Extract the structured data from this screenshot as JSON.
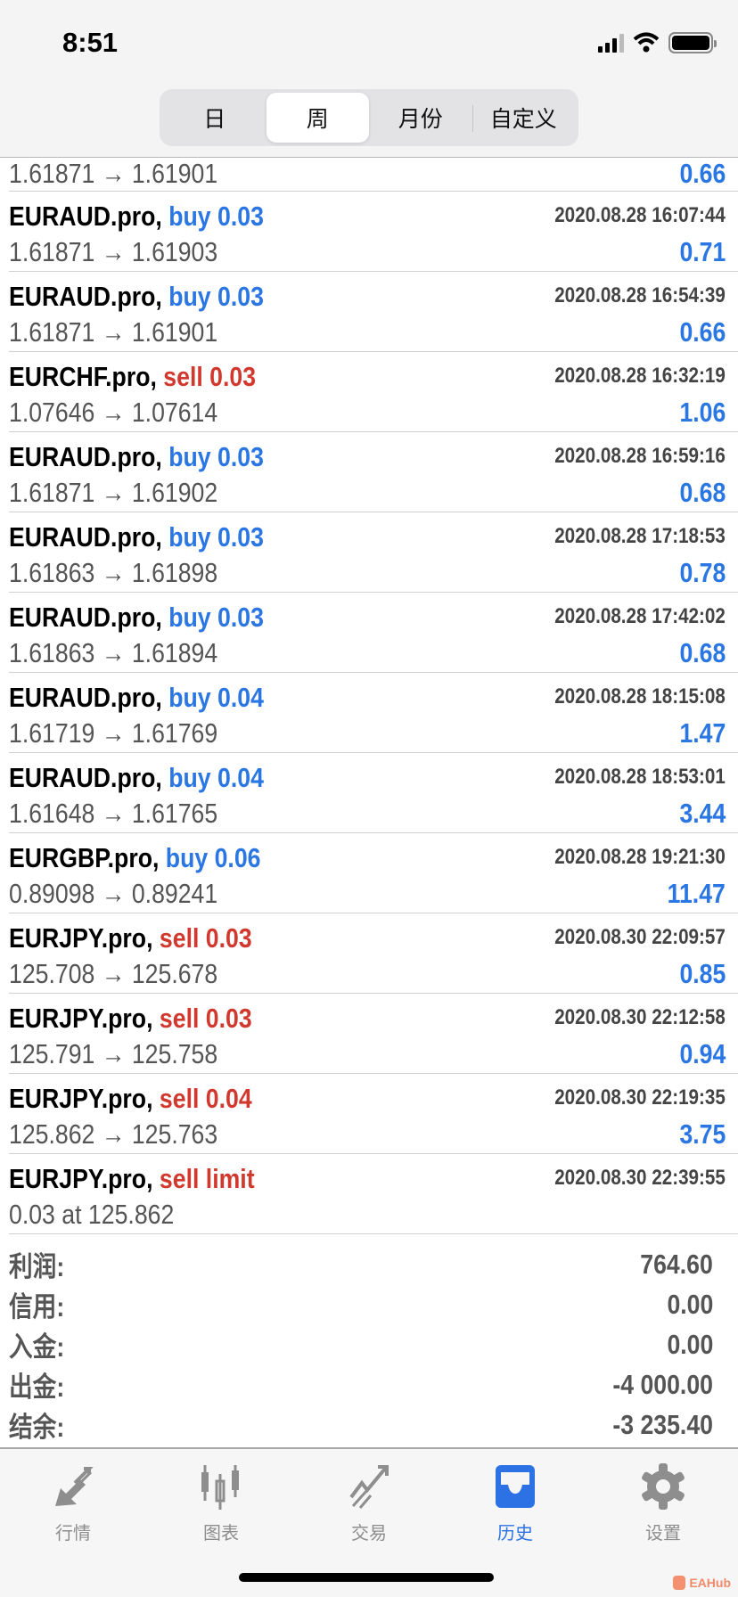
{
  "status_bar": {
    "time": "8:51"
  },
  "segments": [
    {
      "label": "日",
      "active": false
    },
    {
      "label": "周",
      "active": true
    },
    {
      "label": "月份",
      "active": false
    },
    {
      "label": "自定义",
      "active": false
    }
  ],
  "partial_row": {
    "prices": "1.61871 → 1.61901",
    "profit": "0.66"
  },
  "rows": [
    {
      "symbol": "EURAUD.pro,",
      "side": "buy 0.03",
      "type": "buy",
      "time": "2020.08.28 16:07:44",
      "prices": "1.61871 → 1.61903",
      "profit": "0.71"
    },
    {
      "symbol": "EURAUD.pro,",
      "side": "buy 0.03",
      "type": "buy",
      "time": "2020.08.28 16:54:39",
      "prices": "1.61871 → 1.61901",
      "profit": "0.66"
    },
    {
      "symbol": "EURCHF.pro,",
      "side": "sell 0.03",
      "type": "sell",
      "time": "2020.08.28 16:32:19",
      "prices": "1.07646 → 1.07614",
      "profit": "1.06"
    },
    {
      "symbol": "EURAUD.pro,",
      "side": "buy 0.03",
      "type": "buy",
      "time": "2020.08.28 16:59:16",
      "prices": "1.61871 → 1.61902",
      "profit": "0.68"
    },
    {
      "symbol": "EURAUD.pro,",
      "side": "buy 0.03",
      "type": "buy",
      "time": "2020.08.28 17:18:53",
      "prices": "1.61863 → 1.61898",
      "profit": "0.78"
    },
    {
      "symbol": "EURAUD.pro,",
      "side": "buy 0.03",
      "type": "buy",
      "time": "2020.08.28 17:42:02",
      "prices": "1.61863 → 1.61894",
      "profit": "0.68"
    },
    {
      "symbol": "EURAUD.pro,",
      "side": "buy 0.04",
      "type": "buy",
      "time": "2020.08.28 18:15:08",
      "prices": "1.61719 → 1.61769",
      "profit": "1.47"
    },
    {
      "symbol": "EURAUD.pro,",
      "side": "buy 0.04",
      "type": "buy",
      "time": "2020.08.28 18:53:01",
      "prices": "1.61648 → 1.61765",
      "profit": "3.44"
    },
    {
      "symbol": "EURGBP.pro,",
      "side": "buy 0.06",
      "type": "buy",
      "time": "2020.08.28 19:21:30",
      "prices": "0.89098 → 0.89241",
      "profit": "11.47"
    },
    {
      "symbol": "EURJPY.pro,",
      "side": "sell 0.03",
      "type": "sell",
      "time": "2020.08.30 22:09:57",
      "prices": "125.708 → 125.678",
      "profit": "0.85"
    },
    {
      "symbol": "EURJPY.pro,",
      "side": "sell 0.03",
      "type": "sell",
      "time": "2020.08.30 22:12:58",
      "prices": "125.791 → 125.758",
      "profit": "0.94"
    },
    {
      "symbol": "EURJPY.pro,",
      "side": "sell 0.04",
      "type": "sell",
      "time": "2020.08.30 22:19:35",
      "prices": "125.862 → 125.763",
      "profit": "3.75"
    },
    {
      "symbol": "EURJPY.pro,",
      "side": "sell limit",
      "type": "sell",
      "time": "2020.08.30 22:39:55",
      "prices": "0.03 at 125.862",
      "profit": ""
    }
  ],
  "summary": [
    {
      "label": "利润:",
      "value": "764.60"
    },
    {
      "label": "信用:",
      "value": "0.00"
    },
    {
      "label": "入金:",
      "value": "0.00"
    },
    {
      "label": "出金:",
      "value": "-4 000.00"
    },
    {
      "label": "结余:",
      "value": "-3 235.40"
    }
  ],
  "tabs": [
    {
      "label": "行情",
      "icon": "quotes-arrows-icon",
      "active": false
    },
    {
      "label": "图表",
      "icon": "candlestick-chart-icon",
      "active": false
    },
    {
      "label": "交易",
      "icon": "trade-trend-icon",
      "active": false
    },
    {
      "label": "历史",
      "icon": "history-inbox-icon",
      "active": true
    },
    {
      "label": "设置",
      "icon": "gear-icon",
      "active": false
    }
  ],
  "watermark": "EAHub",
  "colors": {
    "buy": "#2a76e3",
    "sell": "#d2392e",
    "active_tab": "#2d72e4",
    "inactive_tab": "#8e8e8e"
  }
}
